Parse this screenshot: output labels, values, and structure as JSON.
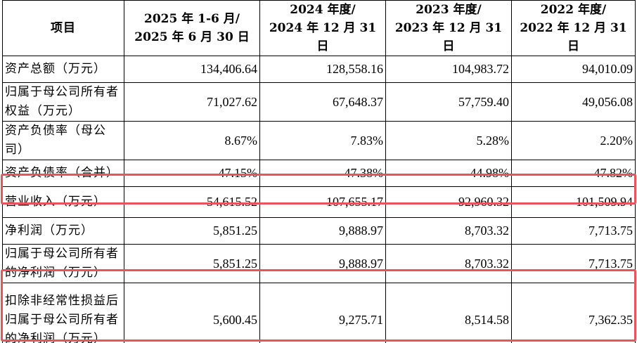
{
  "table": {
    "headers": {
      "item": "项目",
      "col1_line1": "2025 年 1-6 月/",
      "col1_line2": "2025 年 6 月 30 日",
      "col2_line1": "2024 年度/",
      "col2_line2": "2024 年 12 月 31 日",
      "col3_line1": "2023 年度/",
      "col3_line2": "2023 年 12 月 31 日",
      "col4_line1": "2022 年度/",
      "col4_line2": "2022 年 12 月 31 日"
    },
    "rows": [
      {
        "label": "资产总额（万元）",
        "values": [
          "134,406.64",
          "128,558.16",
          "104,983.72",
          "94,010.09"
        ]
      },
      {
        "label": "归属于母公司所有者权益（万元）",
        "values": [
          "71,027.62",
          "67,648.37",
          "57,759.40",
          "49,056.08"
        ]
      },
      {
        "label": "资产负债率（母公司）",
        "values": [
          "8.67%",
          "7.83%",
          "5.28%",
          "2.20%"
        ]
      },
      {
        "label": "资产负债率（合并）",
        "values": [
          "47.15%",
          "47.38%",
          "44.98%",
          "47.82%"
        ]
      },
      {
        "label": "营业收入（万元）",
        "values": [
          "54,615.52",
          "107,655.17",
          "92,960.32",
          "101,509.94"
        ]
      },
      {
        "label": "净利润（万元）",
        "values": [
          "5,851.25",
          "9,888.97",
          "8,703.32",
          "7,713.75"
        ]
      },
      {
        "label": "归属于母公司所有者的净利润（万元）",
        "values": [
          "5,851.25",
          "9,888.97",
          "8,703.32",
          "7,713.75"
        ]
      },
      {
        "label": "扣除非经常性损益后归属于母公司所有者的净利润（万元）",
        "values": [
          "5,600.45",
          "9,275.71",
          "8,514.58",
          "7,362.35"
        ]
      }
    ]
  },
  "highlight_color": "#e8545a"
}
